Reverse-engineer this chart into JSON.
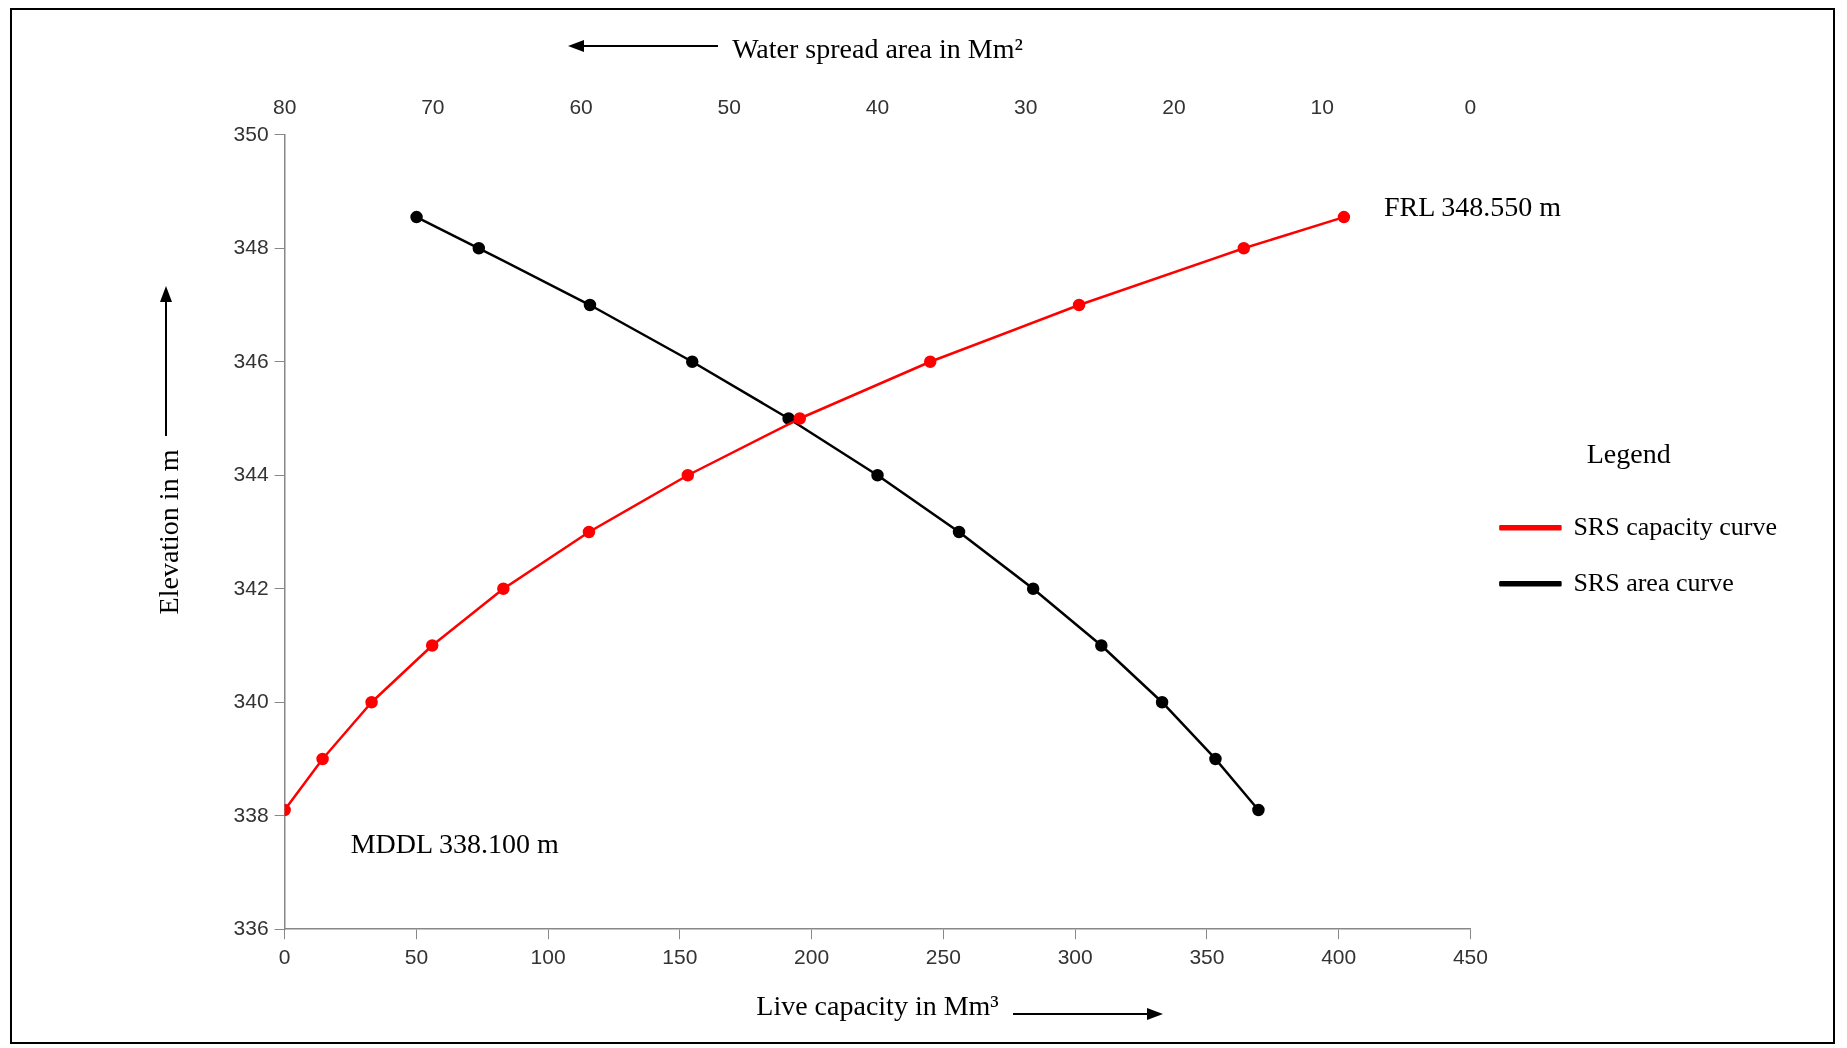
{
  "chart_data": {
    "type": "line",
    "xlabel": "Live capacity in Mm³",
    "x2label": "Water spread area in Mm²",
    "ylabel": "Elevation in m",
    "legend_title": "Legend",
    "legend": "right",
    "marker": "circle",
    "line_style": "solid",
    "xlim": [
      0,
      450
    ],
    "xticks": [
      0,
      50,
      100,
      150,
      200,
      250,
      300,
      350,
      400,
      450
    ],
    "x2lim": [
      80,
      0
    ],
    "x2ticks": [
      80,
      70,
      60,
      50,
      40,
      30,
      20,
      10,
      0
    ],
    "ylim": [
      336,
      350
    ],
    "yticks": [
      336,
      338,
      340,
      342,
      344,
      346,
      348,
      350
    ],
    "series": [
      {
        "name": "SRS capacity curve",
        "color": "#ff0000",
        "x": [
          0,
          14.4,
          33,
          56,
          83,
          115.5,
          153,
          195.5,
          245,
          301.5,
          364,
          402
        ],
        "values": [
          338.1,
          339,
          340,
          341,
          342,
          343,
          344,
          345,
          346,
          347,
          348,
          348.55
        ]
      },
      {
        "name": "SRS area curve",
        "color": "#000000",
        "axis": "x2",
        "x": [
          14.3,
          17.2,
          20.8,
          24.9,
          29.5,
          34.5,
          40.0,
          46.0,
          52.5,
          59.4,
          66.9,
          71.1
        ],
        "values": [
          338.1,
          339,
          340,
          341,
          342,
          343,
          344,
          345,
          346,
          347,
          348,
          348.55
        ]
      }
    ],
    "annotations": [
      {
        "text": "FRL 348.550 m",
        "x": 402,
        "y": 348.55
      },
      {
        "text": "MDDL 338.100 m",
        "x": 0,
        "y": 338.1
      }
    ]
  }
}
